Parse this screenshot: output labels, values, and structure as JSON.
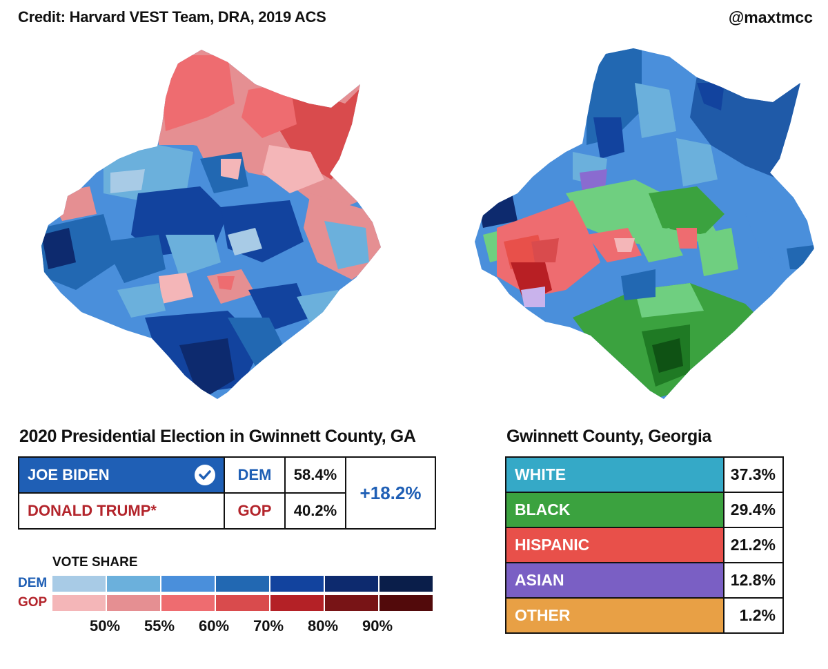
{
  "header": {
    "credit": "Credit: Harvard VEST Team, DRA, 2019 ACS",
    "handle": "@maxtmcc"
  },
  "election": {
    "title": "2020 Presidential Election in Gwinnett County, GA",
    "candidates": [
      {
        "name": "JOE BIDEN",
        "party": "DEM",
        "pct": "58.4%",
        "winner": true,
        "color": "#1f5fb5"
      },
      {
        "name": "DONALD TRUMP*",
        "party": "GOP",
        "pct": "40.2%",
        "winner": false,
        "color": "#b3242b"
      }
    ],
    "margin": "+18.2%"
  },
  "legend": {
    "title": "VOTE SHARE",
    "dem_label": "DEM",
    "gop_label": "GOP",
    "dem_colors": [
      "#a8cbe6",
      "#6bb0dc",
      "#4a8fdb",
      "#2268b2",
      "#12439e",
      "#0d2a6e",
      "#0a1e4a"
    ],
    "gop_colors": [
      "#f4b6b8",
      "#e58f92",
      "#ee6c70",
      "#d94b4d",
      "#b42126",
      "#781416",
      "#520a0b"
    ],
    "ticks": [
      "50%",
      "55%",
      "60%",
      "70%",
      "80%",
      "90%"
    ]
  },
  "demographics": {
    "title": "Gwinnett County, Georgia",
    "rows": [
      {
        "label": "WHITE",
        "value": "37.3%",
        "color": "#35a9c7"
      },
      {
        "label": "BLACK",
        "value": "29.4%",
        "color": "#3ba23f"
      },
      {
        "label": "HISPANIC",
        "value": "21.2%",
        "color": "#e8504a"
      },
      {
        "label": "ASIAN",
        "value": "12.8%",
        "color": "#7a5fc4"
      },
      {
        "label": "OTHER",
        "value": "1.2%",
        "color": "#e8a045"
      }
    ]
  }
}
